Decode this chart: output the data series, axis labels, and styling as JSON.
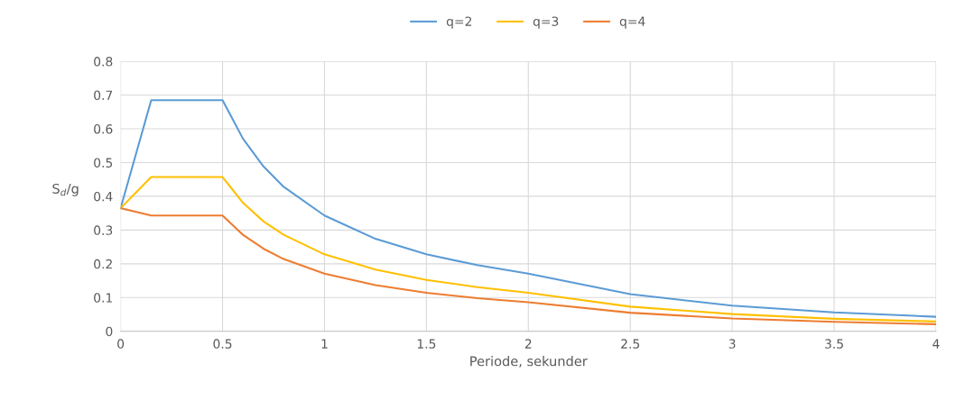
{
  "chart_data": {
    "type": "line",
    "xlabel": "Periode, sekunder",
    "ylabel": "S$_{d}$/g",
    "x": [
      0,
      0.15,
      0.5,
      0.6,
      0.7,
      0.8,
      1,
      1.25,
      1.5,
      1.75,
      2,
      2.5,
      3,
      3.5,
      4
    ],
    "series": [
      {
        "name": "q=2",
        "color": "#5b9bd5",
        "values": [
          0.365,
          0.685,
          0.685,
          0.571,
          0.489,
          0.428,
          0.343,
          0.274,
          0.228,
          0.196,
          0.171,
          0.11,
          0.076,
          0.056,
          0.043
        ]
      },
      {
        "name": "q=3",
        "color": "#ffc000",
        "values": [
          0.365,
          0.457,
          0.457,
          0.381,
          0.326,
          0.286,
          0.228,
          0.183,
          0.152,
          0.131,
          0.114,
          0.073,
          0.051,
          0.037,
          0.029
        ]
      },
      {
        "name": "q=4",
        "color": "#ed7d31",
        "values": [
          0.365,
          0.343,
          0.343,
          0.286,
          0.245,
          0.214,
          0.171,
          0.137,
          0.114,
          0.098,
          0.086,
          0.055,
          0.038,
          0.028,
          0.021
        ]
      }
    ],
    "xlim": [
      0,
      4
    ],
    "xticks": [
      0,
      0.5,
      1,
      1.5,
      2,
      2.5,
      3,
      3.5,
      4
    ],
    "ylim": [
      0,
      0.8
    ],
    "yticks": [
      0,
      0.1,
      0.2,
      0.3,
      0.4,
      0.5,
      0.6,
      0.7,
      0.8
    ],
    "grid": true,
    "legend": "top",
    "marker": "none",
    "line_style": "solid"
  }
}
